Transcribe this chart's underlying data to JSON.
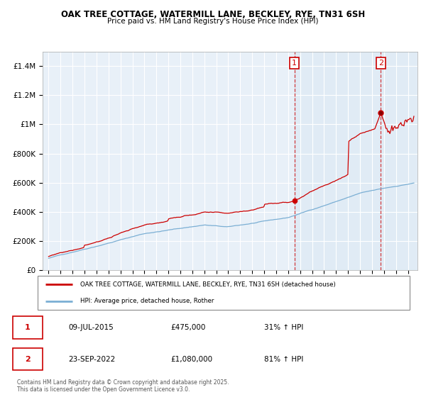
{
  "title": "OAK TREE COTTAGE, WATERMILL LANE, BECKLEY, RYE, TN31 6SH",
  "subtitle": "Price paid vs. HM Land Registry's House Price Index (HPI)",
  "ylim": [
    0,
    1500000
  ],
  "yticks": [
    0,
    200000,
    400000,
    600000,
    800000,
    1000000,
    1200000,
    1400000
  ],
  "ytick_labels": [
    "£0",
    "£200K",
    "£400K",
    "£600K",
    "£800K",
    "£1M",
    "£1.2M",
    "£1.4M"
  ],
  "bg_color": "#e8f0f8",
  "grid_color": "#ffffff",
  "red_color": "#cc0000",
  "blue_color": "#7bafd4",
  "sale1_date": 2015.52,
  "sale1_price": 475000,
  "sale1_label": "1",
  "sale2_date": 2022.73,
  "sale2_price": 1080000,
  "sale2_label": "2",
  "legend_red_label": "OAK TREE COTTAGE, WATERMILL LANE, BECKLEY, RYE, TN31 6SH (detached house)",
  "legend_blue_label": "HPI: Average price, detached house, Rother",
  "footer_text": "Contains HM Land Registry data © Crown copyright and database right 2025.\nThis data is licensed under the Open Government Licence v3.0.",
  "table_rows": [
    [
      "1",
      "09-JUL-2015",
      "£475,000",
      "31% ↑ HPI"
    ],
    [
      "2",
      "23-SEP-2022",
      "£1,080,000",
      "81% ↑ HPI"
    ]
  ]
}
